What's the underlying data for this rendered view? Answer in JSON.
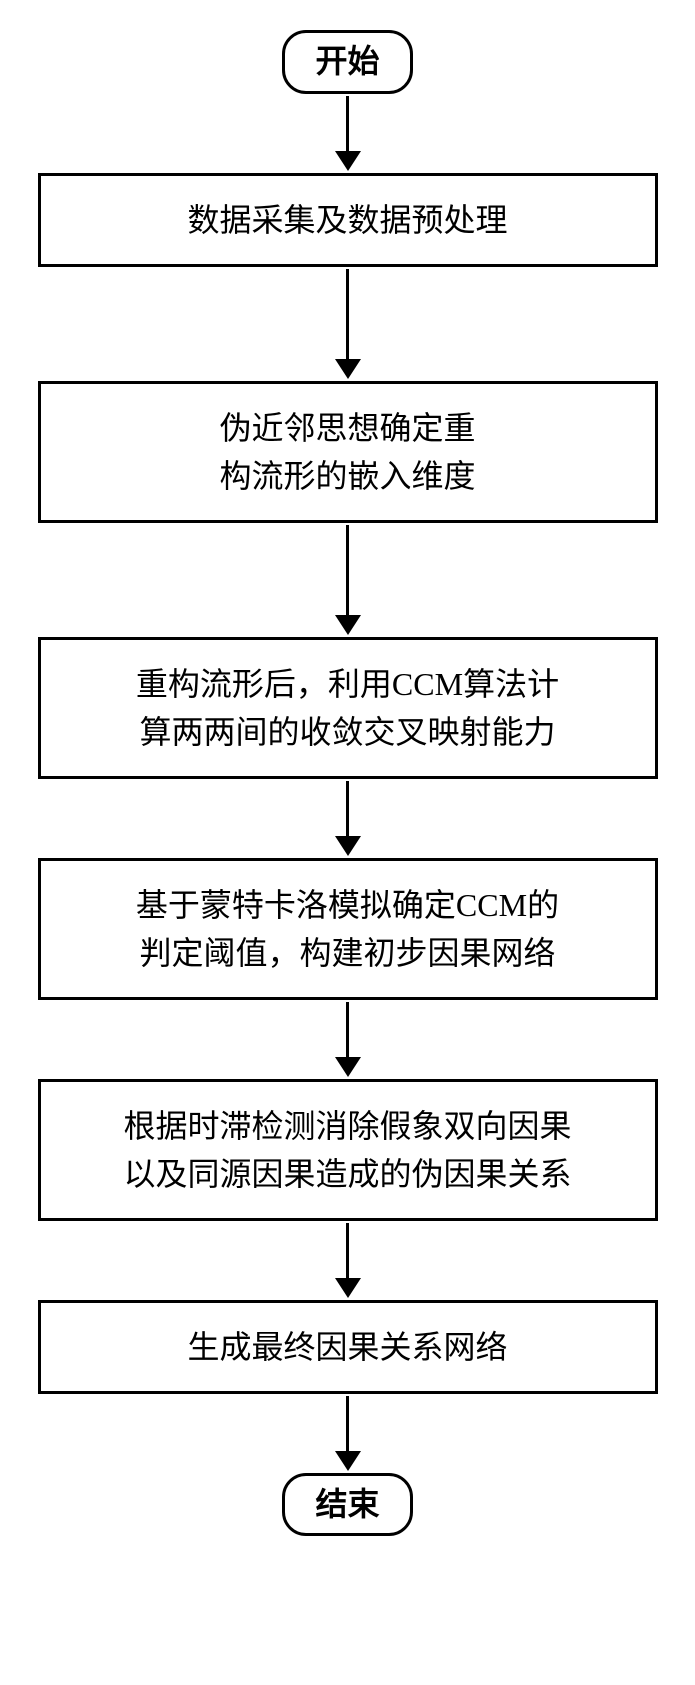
{
  "flowchart": {
    "type": "flowchart",
    "background_color": "#ffffff",
    "border_color": "#000000",
    "border_width": 3,
    "font_family": "SimSun",
    "nodes": {
      "start": {
        "shape": "terminal",
        "label": "开始",
        "fontsize": 32
      },
      "step1": {
        "shape": "process",
        "label": "数据采集及数据预处理",
        "fontsize": 32
      },
      "step2": {
        "shape": "process",
        "label": "伪近邻思想确定重\n构流形的嵌入维度",
        "fontsize": 32
      },
      "step3": {
        "shape": "process",
        "label": "重构流形后，利用CCM算法计\n算两两间的收敛交叉映射能力",
        "fontsize": 32
      },
      "step4": {
        "shape": "process",
        "label": "基于蒙特卡洛模拟确定CCM的\n判定阈值，构建初步因果网络",
        "fontsize": 32
      },
      "step5": {
        "shape": "process",
        "label": "根据时滞检测消除假象双向因果\n以及同源因果造成的伪因果关系",
        "fontsize": 32
      },
      "step6": {
        "shape": "process",
        "label": "生成最终因果关系网络",
        "fontsize": 32
      },
      "end": {
        "shape": "terminal",
        "label": "结束",
        "fontsize": 32
      }
    },
    "arrow_style": {
      "line_width": 3,
      "head_width": 26,
      "head_height": 20,
      "color": "#000000"
    }
  }
}
